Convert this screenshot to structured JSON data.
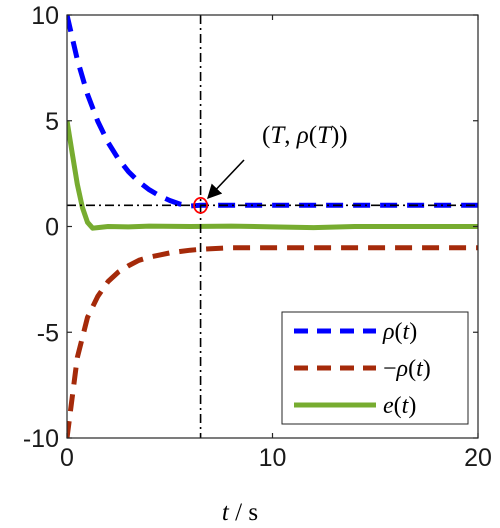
{
  "chart_data": {
    "type": "line",
    "xlabel": "t / s",
    "xlim": [
      0,
      20
    ],
    "ylim": [
      -10,
      10
    ],
    "xticks": [
      "0",
      "10",
      "20"
    ],
    "yticks": [
      "10",
      "5",
      "0",
      "-5",
      "-10"
    ],
    "grid": false,
    "legend_position": "bottom-right",
    "series": [
      {
        "name": "ρ(t)",
        "style": "dashed",
        "color": "#0000ff",
        "x": [
          0,
          0.5,
          1,
          1.5,
          2,
          2.5,
          3,
          3.5,
          4,
          4.5,
          5,
          5.5,
          6,
          6.5,
          7,
          8,
          10,
          12,
          15,
          18,
          20
        ],
        "y": [
          10,
          7.89,
          6.25,
          4.97,
          3.97,
          3.19,
          2.58,
          2.11,
          1.74,
          1.45,
          1.23,
          1.06,
          0.97,
          1.0,
          1.0,
          1.0,
          1.0,
          1.0,
          1.0,
          1.0,
          1.0
        ]
      },
      {
        "name": "−ρ(t)",
        "style": "dashed",
        "color": "#a52a0a",
        "x": [
          0,
          0.5,
          1,
          1.5,
          2,
          2.5,
          3,
          3.5,
          4,
          4.5,
          5,
          5.5,
          6,
          6.5,
          7,
          8,
          10,
          12,
          15,
          18,
          20
        ],
        "y": [
          -10,
          -6.2,
          -4.3,
          -3.3,
          -2.6,
          -2.15,
          -1.85,
          -1.6,
          -1.45,
          -1.35,
          -1.25,
          -1.18,
          -1.12,
          -1.08,
          -1.05,
          -1.0,
          -1.0,
          -1.0,
          -1.0,
          -1.0,
          -1.0
        ]
      },
      {
        "name": "e(t)",
        "style": "solid",
        "color": "#77ac30",
        "x": [
          0,
          0.25,
          0.5,
          0.75,
          1.0,
          1.25,
          1.5,
          2,
          3,
          4,
          6,
          8,
          10,
          12,
          14,
          16,
          18,
          20
        ],
        "y": [
          5,
          3.5,
          2.0,
          0.9,
          0.2,
          -0.08,
          -0.05,
          0.0,
          -0.02,
          0.02,
          0.0,
          0.02,
          -0.02,
          -0.05,
          0.0,
          0.0,
          0.0,
          0.0
        ]
      }
    ],
    "reference_lines": {
      "vertical_x": 6.5,
      "horizontal_y": 1
    },
    "marker": {
      "x": 6.5,
      "y": 1,
      "color": "#ff0000"
    },
    "annotation": {
      "text": "(T, ρ(T))",
      "x": 6.5,
      "y": 1
    }
  }
}
